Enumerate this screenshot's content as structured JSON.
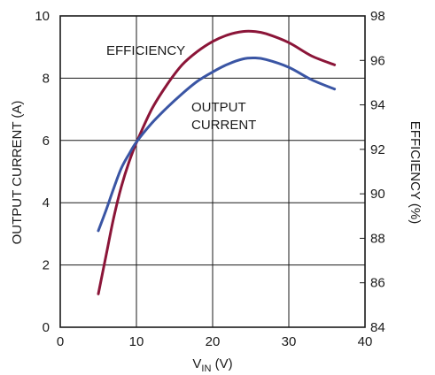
{
  "chart_data": {
    "type": "line",
    "xlabel_main": "V",
    "xlabel_sub": "IN",
    "xlabel_unit": " (V)",
    "ylabel_left": "OUTPUT CURRENT (A)",
    "ylabel_right": "EFFICIENCY (%)",
    "xlim": [
      0,
      40
    ],
    "ylim_left": [
      0,
      10
    ],
    "ylim_right": [
      84,
      98
    ],
    "x_ticks": [
      0,
      10,
      20,
      30,
      40
    ],
    "y_left_ticks": [
      0,
      2,
      4,
      6,
      8,
      10
    ],
    "y_right_ticks": [
      84,
      86,
      88,
      90,
      92,
      94,
      96,
      98
    ],
    "grid": true,
    "annotations": {
      "efficiency": "EFFICIENCY",
      "output_line1": "OUTPUT",
      "output_line2": "CURRENT"
    },
    "series": [
      {
        "axis": "right",
        "color": "#8b1538",
        "x": [
          5,
          6,
          7,
          8,
          9,
          10,
          12,
          14,
          16,
          18,
          20,
          22,
          24,
          25.5,
          27,
          30,
          33,
          36
        ],
        "values": [
          85.5,
          87.2,
          88.9,
          90.3,
          91.4,
          92.3,
          93.8,
          94.9,
          95.8,
          96.4,
          96.85,
          97.15,
          97.3,
          97.3,
          97.2,
          96.8,
          96.2,
          95.8
        ]
      },
      {
        "axis": "left",
        "color": "#3a55a4",
        "x": [
          5,
          6,
          7,
          8,
          9,
          10,
          12,
          14,
          16,
          18,
          20,
          22,
          24,
          25.5,
          27,
          30,
          33,
          36
        ],
        "values": [
          3.1,
          3.75,
          4.45,
          5.1,
          5.55,
          5.95,
          6.55,
          7.05,
          7.5,
          7.9,
          8.2,
          8.45,
          8.62,
          8.65,
          8.6,
          8.35,
          7.95,
          7.65
        ]
      }
    ]
  }
}
